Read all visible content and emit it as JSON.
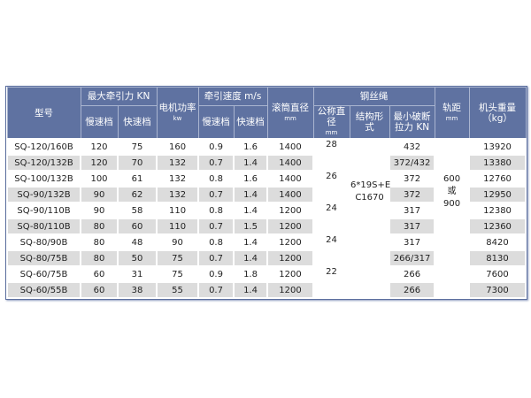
{
  "headers": {
    "model": "型号",
    "max_traction": "最大牵引力 KN",
    "slow": "慢速档",
    "fast": "快速档",
    "motor_power": "电机功率",
    "motor_unit": "kw",
    "speed": "牵引速度 m/s",
    "drum_dia": "滚筒直径",
    "drum_unit": "mm",
    "rope": "钢丝绳",
    "nominal_dia": "公称直径",
    "nominal_unit": "mm",
    "structure": "结构形式",
    "min_break": "最小破断拉力 KN",
    "gauge": "轨距",
    "gauge_unit": "mm",
    "weight": "机头重量",
    "weight_unit": "（kg）"
  },
  "merged": {
    "structure_value": "6*19S+E C1670",
    "gauge_value": "600 或 900",
    "rope_dia": [
      "28",
      "26",
      "24",
      "24",
      "22"
    ]
  },
  "rows": [
    {
      "model": "SQ-120/160B",
      "tslow": "120",
      "tfast": "75",
      "power": "160",
      "vslow": "0.9",
      "vfast": "1.6",
      "drum": "1400",
      "brk": "432",
      "weight": "13920"
    },
    {
      "model": "SQ-120/132B",
      "tslow": "120",
      "tfast": "70",
      "power": "132",
      "vslow": "0.7",
      "vfast": "1.4",
      "drum": "1400",
      "brk": "372/432",
      "weight": "13380"
    },
    {
      "model": "SQ-100/132B",
      "tslow": "100",
      "tfast": "61",
      "power": "132",
      "vslow": "0.8",
      "vfast": "1.6",
      "drum": "1400",
      "brk": "372",
      "weight": "12760"
    },
    {
      "model": "SQ-90/132B",
      "tslow": "90",
      "tfast": "62",
      "power": "132",
      "vslow": "0.7",
      "vfast": "1.4",
      "drum": "1400",
      "brk": "372",
      "weight": "12950"
    },
    {
      "model": "SQ-90/110B",
      "tslow": "90",
      "tfast": "58",
      "power": "110",
      "vslow": "0.8",
      "vfast": "1.4",
      "drum": "1200",
      "brk": "317",
      "weight": "12380"
    },
    {
      "model": "SQ-80/110B",
      "tslow": "80",
      "tfast": "60",
      "power": "110",
      "vslow": "0.7",
      "vfast": "1.5",
      "drum": "1200",
      "brk": "317",
      "weight": "12360"
    },
    {
      "model": "SQ-80/90B",
      "tslow": "80",
      "tfast": "48",
      "power": "90",
      "vslow": "0.8",
      "vfast": "1.4",
      "drum": "1200",
      "brk": "317",
      "weight": "8420"
    },
    {
      "model": "SQ-80/75B",
      "tslow": "80",
      "tfast": "50",
      "power": "75",
      "vslow": "0.7",
      "vfast": "1.4",
      "drum": "1200",
      "brk": "266/317",
      "weight": "8130"
    },
    {
      "model": "SQ-60/75B",
      "tslow": "60",
      "tfast": "31",
      "power": "75",
      "vslow": "0.9",
      "vfast": "1.8",
      "drum": "1200",
      "brk": "266",
      "weight": "7600"
    },
    {
      "model": "SQ-60/55B",
      "tslow": "60",
      "tfast": "38",
      "power": "55",
      "vslow": "0.7",
      "vfast": "1.4",
      "drum": "1200",
      "brk": "266",
      "weight": "7300"
    }
  ]
}
